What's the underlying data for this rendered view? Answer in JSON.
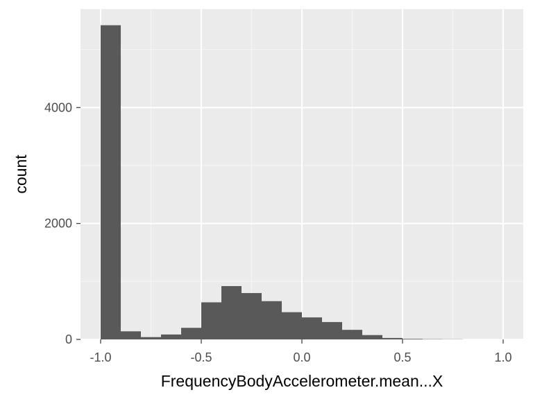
{
  "chart_data": {
    "type": "bar",
    "subtype": "histogram",
    "xlabel": "FrequencyBodyAccelerometer.mean...X",
    "ylabel": "count",
    "xlim": [
      -1.1,
      1.1
    ],
    "ylim": [
      0,
      5700
    ],
    "x_ticks": [
      -1.0,
      -0.5,
      0.0,
      0.5,
      1.0
    ],
    "x_tick_labels": [
      "-1.0",
      "-0.5",
      "0.0",
      "0.5",
      "1.0"
    ],
    "y_ticks": [
      0,
      2000,
      4000
    ],
    "y_tick_labels": [
      "0",
      "2000",
      "4000"
    ],
    "bin_width": 0.1,
    "bins": [
      {
        "x0": -1.0,
        "x1": -0.9,
        "count": 5420
      },
      {
        "x0": -0.9,
        "x1": -0.8,
        "count": 140
      },
      {
        "x0": -0.8,
        "x1": -0.7,
        "count": 40
      },
      {
        "x0": -0.7,
        "x1": -0.6,
        "count": 85
      },
      {
        "x0": -0.6,
        "x1": -0.5,
        "count": 200
      },
      {
        "x0": -0.5,
        "x1": -0.4,
        "count": 640
      },
      {
        "x0": -0.4,
        "x1": -0.3,
        "count": 920
      },
      {
        "x0": -0.3,
        "x1": -0.2,
        "count": 800
      },
      {
        "x0": -0.2,
        "x1": -0.1,
        "count": 660
      },
      {
        "x0": -0.1,
        "x1": 0.0,
        "count": 470
      },
      {
        "x0": 0.0,
        "x1": 0.1,
        "count": 380
      },
      {
        "x0": 0.1,
        "x1": 0.2,
        "count": 300
      },
      {
        "x0": 0.2,
        "x1": 0.3,
        "count": 165
      },
      {
        "x0": 0.3,
        "x1": 0.4,
        "count": 75
      },
      {
        "x0": 0.4,
        "x1": 0.5,
        "count": 25
      },
      {
        "x0": 0.5,
        "x1": 0.6,
        "count": 10
      },
      {
        "x0": 0.6,
        "x1": 0.7,
        "count": 5
      },
      {
        "x0": 0.7,
        "x1": 0.8,
        "count": 3
      },
      {
        "x0": 0.8,
        "x1": 0.9,
        "count": 0
      },
      {
        "x0": 0.9,
        "x1": 1.0,
        "count": 0
      }
    ],
    "grid": true,
    "colors": {
      "panel_background": "#ebebeb",
      "grid_major": "#ffffff",
      "grid_minor": "#f5f5f5",
      "bar_fill": "#595959",
      "tick_text": "#4d4d4d",
      "tick_mark": "#333333"
    }
  }
}
